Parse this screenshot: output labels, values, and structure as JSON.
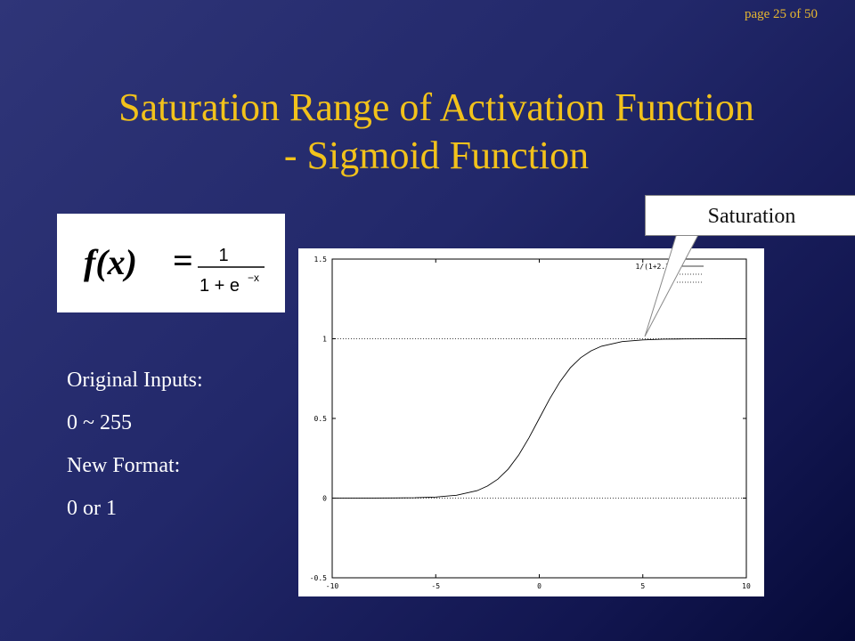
{
  "page_indicator": "page 25 of 50",
  "title_line1": "Saturation Range of Activation Function",
  "title_line2": "- Sigmoid Function",
  "formula": {
    "lhs": "f(x)",
    "eq": "=",
    "numerator": "1",
    "denominator": "1 + e",
    "exponent": "−x"
  },
  "bullets": [
    "Original Inputs:",
    "0 ~ 255",
    "New Format:",
    "0 or 1"
  ],
  "callout": "Saturation",
  "chart_data": {
    "type": "line",
    "x": [
      -10,
      -8,
      -7,
      -6,
      -5,
      -4,
      -3,
      -2.5,
      -2,
      -1.5,
      -1,
      -0.5,
      0,
      0.5,
      1,
      1.5,
      2,
      2.5,
      3,
      4,
      5,
      6,
      7,
      8,
      10
    ],
    "series": [
      {
        "name": "1/(1+2.3",
        "values": [
          5e-05,
          0.0003,
          0.0009,
          0.0025,
          0.0067,
          0.018,
          0.047,
          0.076,
          0.119,
          0.182,
          0.269,
          0.378,
          0.5,
          0.622,
          0.731,
          0.818,
          0.881,
          0.924,
          0.953,
          0.982,
          0.993,
          0.9975,
          0.9991,
          0.9997,
          0.99995
        ]
      },
      {
        "name": "0",
        "values": [
          0,
          0
        ],
        "x": [
          -10,
          10
        ],
        "style": "dotted"
      },
      {
        "name": "1",
        "values": [
          1,
          1
        ],
        "x": [
          -10,
          10
        ],
        "style": "dotted"
      }
    ],
    "xlim": [
      -10,
      10
    ],
    "ylim": [
      -0.5,
      1.5
    ],
    "x_ticks": [
      "-10",
      "-5",
      "0",
      "5",
      "10"
    ],
    "y_ticks": [
      "-0.5",
      "0",
      "0.5",
      "1",
      "1.5"
    ],
    "legend": "top-right"
  }
}
